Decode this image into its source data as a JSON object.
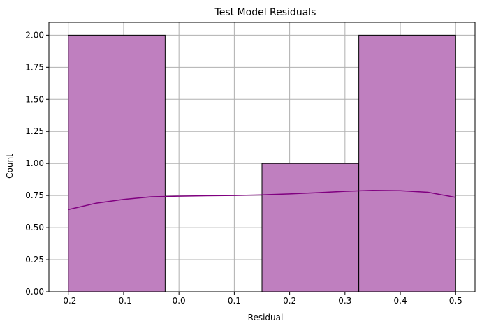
{
  "chart_data": {
    "type": "bar",
    "title": "Test Model Residuals",
    "xlabel": "Residual",
    "ylabel": "Count",
    "xlim": [
      -0.235,
      0.535
    ],
    "ylim": [
      0,
      2.1
    ],
    "grid": true,
    "bins": [
      {
        "start": -0.2,
        "end": -0.025,
        "count": 2
      },
      {
        "start": -0.025,
        "end": 0.15,
        "count": 0
      },
      {
        "start": 0.15,
        "end": 0.325,
        "count": 1
      },
      {
        "start": 0.325,
        "end": 0.5,
        "count": 2
      }
    ],
    "kde": {
      "x": [
        -0.2,
        -0.15,
        -0.1,
        -0.05,
        0.0,
        0.05,
        0.1,
        0.15,
        0.2,
        0.25,
        0.3,
        0.35,
        0.4,
        0.45,
        0.5
      ],
      "y": [
        0.64,
        0.69,
        0.72,
        0.74,
        0.745,
        0.748,
        0.75,
        0.755,
        0.762,
        0.772,
        0.783,
        0.79,
        0.788,
        0.775,
        0.735
      ]
    },
    "x_ticks": [
      "-0.2",
      "-0.1",
      "0.0",
      "0.1",
      "0.2",
      "0.3",
      "0.4",
      "0.5"
    ],
    "x_tick_values": [
      -0.2,
      -0.1,
      0.0,
      0.1,
      0.2,
      0.3,
      0.4,
      0.5
    ],
    "y_ticks": [
      "0.00",
      "0.25",
      "0.50",
      "0.75",
      "1.00",
      "1.25",
      "1.50",
      "1.75",
      "2.00"
    ],
    "y_tick_values": [
      0,
      0.25,
      0.5,
      0.75,
      1.0,
      1.25,
      1.5,
      1.75,
      2.0
    ],
    "colors": {
      "bar_fill": "#bf7fbf",
      "bar_edge": "#000000",
      "kde_line": "#800080",
      "grid": "#b0b0b0"
    }
  }
}
